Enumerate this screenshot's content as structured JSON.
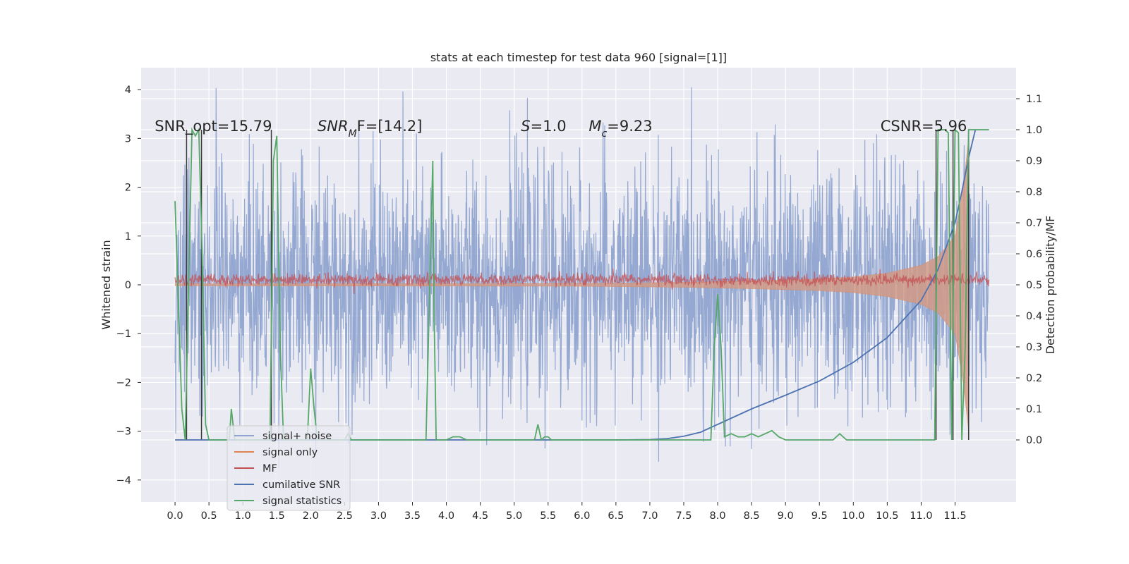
{
  "chart_data": {
    "type": "line",
    "title": "stats at each timestep for test data 960 [signal=[1]]",
    "ylabel_left": "Whitened strain",
    "ylabel_right": "Detection probability/MF",
    "xlim": [
      -0.5,
      12.4
    ],
    "ylim_left": [
      -4.45,
      4.45
    ],
    "ylim_right": [
      -0.2,
      1.2
    ],
    "x_ticks": [
      "0.0",
      "0.5",
      "1.0",
      "1.5",
      "2.0",
      "2.5",
      "3.0",
      "3.5",
      "4.0",
      "4.5",
      "5.0",
      "5.5",
      "6.0",
      "6.5",
      "7.0",
      "7.5",
      "8.0",
      "8.5",
      "9.0",
      "9.5",
      "10.0",
      "10.5",
      "11.0",
      "11.5"
    ],
    "y_ticks_left": [
      "4",
      "3",
      "2",
      "1",
      "0",
      "−1",
      "−2",
      "−3",
      "−4"
    ],
    "y_ticks_right": [
      "1.1",
      "1.0",
      "0.9",
      "0.8",
      "0.7",
      "0.6",
      "0.5",
      "0.4",
      "0.3",
      "0.2",
      "0.1",
      "0.0"
    ],
    "grid": true,
    "legend_position": "lower-left",
    "annotations": [
      {
        "id": "snr-opt",
        "text": "SNR_opt=15.79",
        "x": -0.3,
        "y_right": 1.0
      },
      {
        "id": "snr-mf",
        "text": "SNR",
        "sub": "M",
        "rest": "F=[14.2]",
        "x": 2.1,
        "y_right": 1.0
      },
      {
        "id": "s-value",
        "text": "S",
        "rest": "=1.0",
        "x": 5.1,
        "y_right": 1.0
      },
      {
        "id": "mc-value",
        "text": "M",
        "sub": "c",
        "rest": "=9.23",
        "x": 6.1,
        "y_right": 1.0
      },
      {
        "id": "csnr",
        "text": "CSNR=5.96",
        "x": 10.4,
        "y_right": 1.0
      }
    ],
    "series": [
      {
        "name": "signal+ noise",
        "color": "#8fa4cf",
        "axis": "left",
        "amplitude_std": 1.2,
        "x_range": [
          0.0,
          12.0
        ]
      },
      {
        "name": "signal only",
        "color": "#dd8452",
        "axis": "left",
        "envelope_x": [
          0,
          6,
          7.5,
          8.5,
          9.5,
          10,
          10.5,
          11,
          11.25,
          11.5,
          11.62,
          11.7
        ],
        "envelope_y": [
          0.02,
          0.03,
          0.05,
          0.08,
          0.12,
          0.16,
          0.24,
          0.4,
          0.58,
          1.0,
          2.0,
          3.0
        ]
      },
      {
        "name": "MF",
        "color": "#c44e52",
        "axis": "left",
        "baseline": 0.1
      },
      {
        "name": "cumilative SNR",
        "color": "#4c72b0",
        "axis": "right",
        "x": [
          0,
          6.5,
          7,
          7.25,
          7.5,
          7.75,
          8,
          8.5,
          9,
          9.5,
          10,
          10.5,
          11,
          11.25,
          11.5,
          11.6,
          11.7,
          11.8
        ],
        "y": [
          0,
          0,
          0.001,
          0.004,
          0.012,
          0.025,
          0.05,
          0.1,
          0.144,
          0.19,
          0.25,
          0.33,
          0.45,
          0.55,
          0.7,
          0.8,
          0.91,
          1.0
        ]
      },
      {
        "name": "signal statistics",
        "color": "#55a868",
        "axis": "right",
        "x": [
          0,
          0.1,
          0.15,
          0.2,
          0.25,
          0.3,
          0.35,
          0.4,
          0.45,
          0.5,
          0.6,
          0.8,
          0.83,
          0.88,
          1.0,
          1.2,
          1.3,
          1.4,
          1.45,
          1.5,
          1.55,
          1.6,
          1.8,
          1.95,
          2.0,
          2.05,
          2.1,
          2.2,
          2.4,
          2.5,
          2.55,
          2.6,
          2.65,
          2.7,
          3.0,
          3.5,
          3.7,
          3.8,
          3.82,
          3.85,
          3.9,
          4.0,
          4.1,
          4.2,
          4.3,
          4.5,
          5.0,
          5.3,
          5.35,
          5.4,
          5.45,
          5.5,
          5.55,
          5.6,
          5.7,
          6.0,
          7.0,
          7.5,
          7.9,
          7.95,
          8.0,
          8.05,
          8.1,
          8.2,
          8.3,
          8.4,
          8.5,
          8.6,
          8.7,
          8.8,
          8.9,
          9.0,
          9.5,
          9.7,
          9.8,
          9.9,
          10.0,
          10.3,
          10.4,
          10.5,
          10.6,
          10.8,
          10.9,
          11.0,
          11.2,
          11.25,
          11.3,
          11.35,
          11.4,
          11.45,
          11.5,
          11.55,
          11.6,
          11.65,
          11.7,
          11.75,
          11.8,
          12.0
        ],
        "y": [
          0.77,
          0.1,
          0.0,
          0.5,
          1.0,
          0.98,
          1.0,
          0.6,
          0.05,
          0.0,
          0.0,
          0.0,
          0.1,
          0.0,
          0.0,
          0.0,
          0.0,
          0.0,
          0.9,
          0.98,
          0.3,
          0.0,
          0.0,
          0.0,
          0.23,
          0.1,
          0.0,
          0.0,
          0.0,
          0.0,
          0.02,
          0.0,
          0.0,
          0.0,
          0.0,
          0.0,
          0.0,
          0.9,
          0.4,
          0.0,
          0.0,
          0.0,
          0.01,
          0.01,
          0.0,
          0.0,
          0.0,
          0.0,
          0.05,
          0.0,
          0.01,
          0.01,
          0.0,
          0.0,
          0.0,
          0.0,
          0.0,
          0.0,
          0.0,
          0.3,
          0.47,
          0.3,
          0.01,
          0.02,
          0.01,
          0.01,
          0.02,
          0.01,
          0.02,
          0.03,
          0.01,
          0.0,
          0.0,
          0.0,
          0.02,
          0.0,
          0.0,
          0.0,
          0.0,
          0.0,
          0.0,
          0.0,
          0.0,
          0.0,
          0.0,
          1.0,
          1.0,
          1.0,
          0.99,
          0.0,
          1.0,
          0.99,
          0.0,
          0.3,
          1.0,
          1.0,
          1.0,
          1.0
        ]
      }
    ],
    "vertical_markers_x": [
      0.17,
      0.39,
      1.42,
      11.22,
      11.47,
      11.7
    ]
  }
}
